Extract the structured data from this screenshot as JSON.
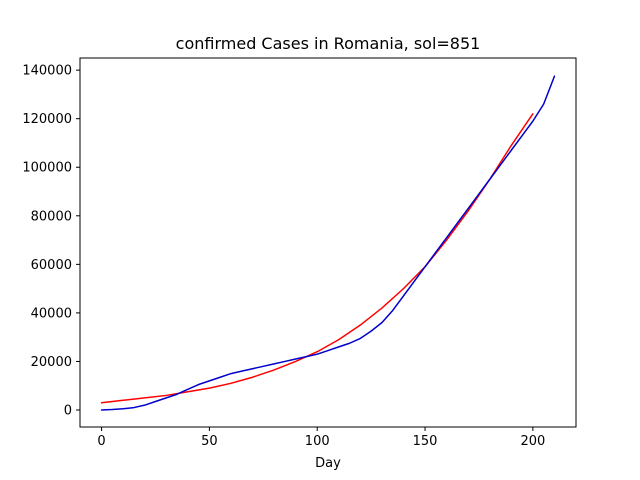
{
  "chart_data": {
    "type": "line",
    "title": "confirmed Cases in Romania, sol=851",
    "xlabel": "Day",
    "ylabel": "",
    "xlim": [
      -10,
      220
    ],
    "ylim": [
      -7000,
      145000
    ],
    "x_ticks": [
      0,
      50,
      100,
      150,
      200
    ],
    "y_ticks": [
      0,
      20000,
      40000,
      60000,
      80000,
      100000,
      120000,
      140000
    ],
    "grid": false,
    "legend": "none",
    "series": [
      {
        "color": "#ff0000",
        "x": [
          0,
          10,
          20,
          30,
          40,
          50,
          60,
          70,
          80,
          90,
          100,
          110,
          120,
          130,
          140,
          150,
          160,
          170,
          180,
          190,
          200
        ],
        "y": [
          3000,
          4000,
          5000,
          6000,
          7500,
          9000,
          11000,
          13500,
          16500,
          20000,
          24000,
          29000,
          35000,
          42000,
          50000,
          59000,
          70000,
          82000,
          95000,
          109000,
          122000
        ]
      },
      {
        "color": "#0000cc",
        "x": [
          0,
          5,
          10,
          15,
          20,
          25,
          30,
          35,
          40,
          45,
          50,
          55,
          60,
          65,
          70,
          75,
          80,
          85,
          90,
          95,
          100,
          105,
          110,
          115,
          120,
          125,
          130,
          135,
          140,
          145,
          150,
          155,
          160,
          165,
          170,
          175,
          180,
          185,
          190,
          195,
          200,
          205,
          210
        ],
        "y": [
          0,
          200,
          500,
          1000,
          2000,
          3500,
          5000,
          6500,
          8500,
          10500,
          12000,
          13500,
          15000,
          16000,
          17000,
          18000,
          19000,
          20000,
          21000,
          22000,
          23000,
          24500,
          26000,
          27500,
          29500,
          32500,
          36000,
          41000,
          47000,
          53000,
          59000,
          65000,
          71000,
          77000,
          83000,
          89000,
          95000,
          101000,
          107000,
          113000,
          119000,
          126000,
          137500
        ]
      }
    ]
  }
}
